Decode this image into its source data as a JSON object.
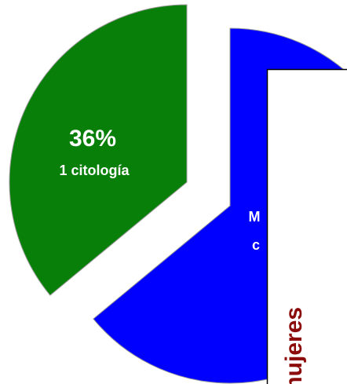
{
  "chart_data": {
    "type": "pie",
    "categories": [
      "1 citología",
      null
    ],
    "values": [
      36,
      64
    ],
    "value_labels": [
      "36%",
      null
    ],
    "colors": [
      "#087f08",
      "#0000ff"
    ],
    "annotations": [
      "M",
      "c"
    ],
    "side_label": "mujeres",
    "side_label_color": "#8b0a0a"
  }
}
